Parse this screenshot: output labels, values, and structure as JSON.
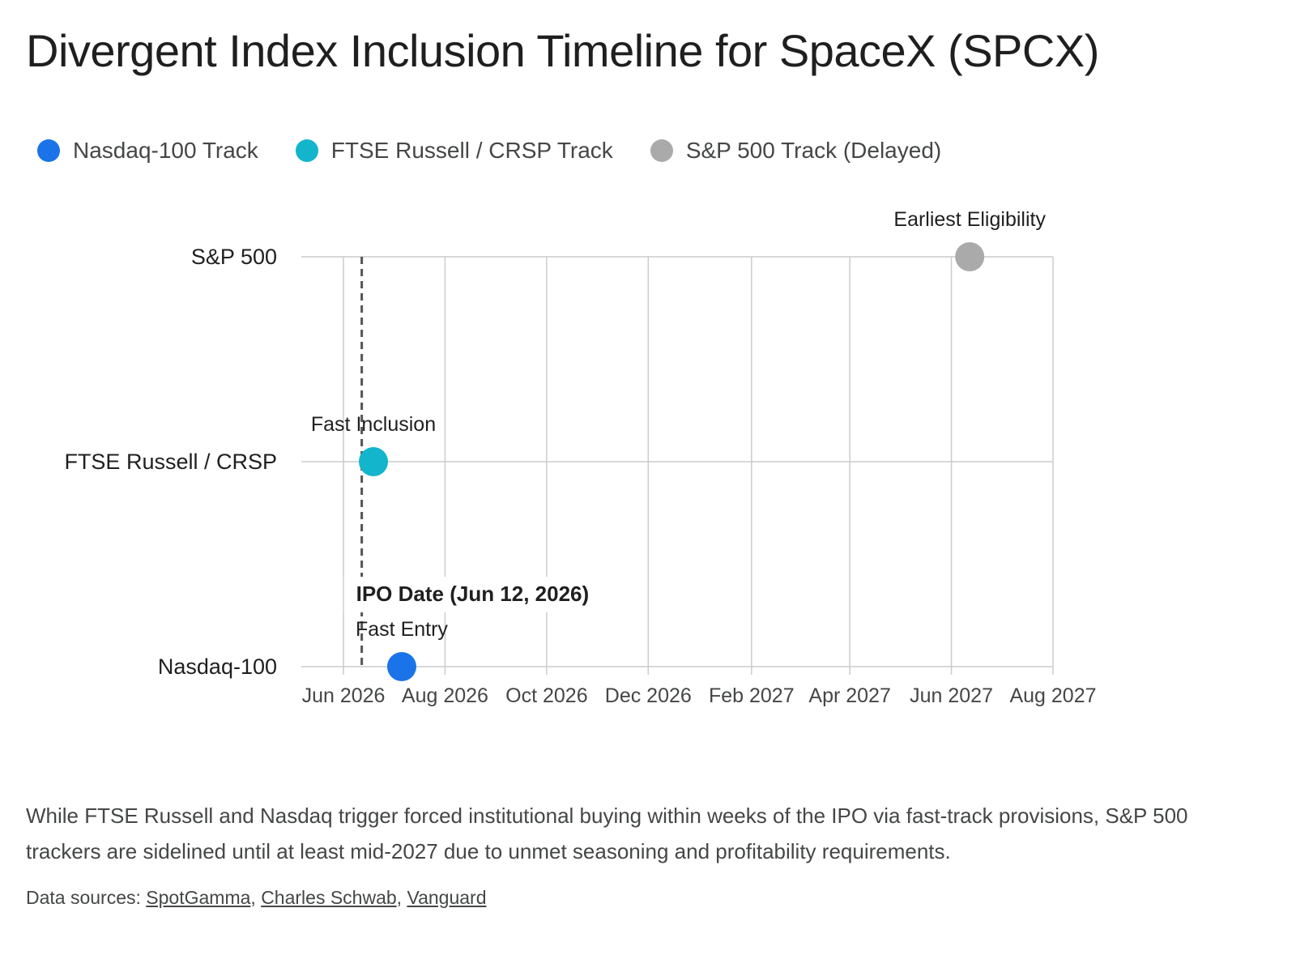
{
  "chart_data": {
    "type": "scatter",
    "title": "Divergent Index Inclusion Timeline for SpaceX (SPCX)",
    "categories": [
      "Nasdaq-100",
      "FTSE Russell / CRSP",
      "S&P 500"
    ],
    "x_ticks": [
      "Jun 2026",
      "Aug 2026",
      "Oct 2026",
      "Dec 2026",
      "Feb 2027",
      "Apr 2027",
      "Jun 2027",
      "Aug 2027"
    ],
    "xlim": [
      "2026-06-01",
      "2027-08-01"
    ],
    "grid": true,
    "legend_position": "top-left",
    "series": [
      {
        "name": "Nasdaq-100 Track",
        "color": "#1a73e8",
        "category": "Nasdaq-100",
        "date": "2026-07-06",
        "label": "Fast Entry"
      },
      {
        "name": "FTSE Russell / CRSP Track",
        "color": "#12b5cb",
        "category": "FTSE Russell / CRSP",
        "date": "2026-06-19",
        "label": "Fast Inclusion"
      },
      {
        "name": "S&P 500 Track (Delayed)",
        "color": "#aaaaaa",
        "category": "S&P 500",
        "date": "2027-06-12",
        "label": "Earliest Eligibility"
      }
    ],
    "annotations": [
      {
        "type": "vline",
        "date": "2026-06-12",
        "label": "IPO Date (Jun 12, 2026)",
        "style": "dashed"
      }
    ]
  },
  "caption": "While FTSE Russell and Nasdaq trigger forced institutional buying within weeks of the IPO via fast-track provisions, S&P 500 trackers are sidelined until at least mid-2027 due to unmet seasoning and profitability requirements.",
  "sources": {
    "prefix": "Data sources: ",
    "links": [
      "SpotGamma",
      "Charles Schwab",
      "Vanguard"
    ]
  }
}
